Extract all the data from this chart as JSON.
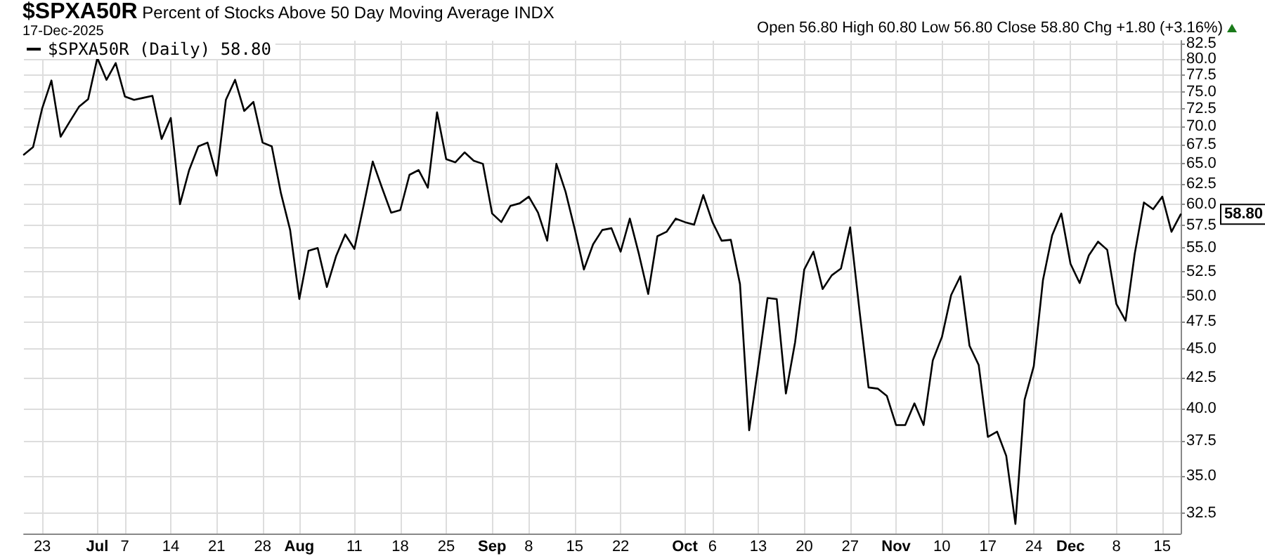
{
  "chart_data": {
    "type": "line",
    "title": "$SPXA50R",
    "subtitle": "Percent of Stocks Above 50 Day Moving Average INDX",
    "annotations": [
      "17-Dec-2025",
      "Open 56.80  High 60.80  Low 56.80  Close 58.80  Chg +1.80 (+3.16%)",
      "58.80"
    ],
    "categories": [
      null,
      null,
      "23",
      null,
      null,
      null,
      null,
      null,
      "Jul",
      null,
      null,
      "7",
      null,
      null,
      null,
      null,
      "14",
      null,
      null,
      null,
      null,
      "21",
      null,
      null,
      null,
      null,
      "28",
      null,
      null,
      null,
      "Aug",
      null,
      null,
      null,
      null,
      null,
      "11",
      null,
      null,
      null,
      null,
      "18",
      null,
      null,
      null,
      null,
      "25",
      null,
      null,
      null,
      null,
      "Sep",
      null,
      null,
      null,
      "8",
      null,
      null,
      null,
      null,
      "15",
      null,
      null,
      null,
      null,
      "22",
      null,
      null,
      null,
      null,
      null,
      null,
      "Oct",
      null,
      null,
      "6",
      null,
      null,
      null,
      null,
      "13",
      null,
      null,
      null,
      null,
      "20",
      null,
      null,
      null,
      null,
      "27",
      null,
      null,
      null,
      null,
      "Nov",
      null,
      null,
      null,
      null,
      "10",
      null,
      null,
      null,
      null,
      "17",
      null,
      null,
      null,
      null,
      "24",
      null,
      null,
      null,
      "Dec",
      null,
      null,
      null,
      null,
      "8",
      null,
      null,
      null,
      null,
      "15",
      null,
      null
    ],
    "series": [
      {
        "name": "$SPXA50R (Daily) 58.80",
        "color": "#000000",
        "values": [
          66.2,
          67.2,
          72.6,
          76.7,
          68.6,
          70.7,
          72.8,
          73.9,
          80.2,
          76.8,
          79.4,
          74.3,
          73.8,
          74.1,
          74.4,
          68.3,
          71.2,
          60.0,
          64.2,
          67.3,
          67.8,
          63.5,
          73.8,
          76.8,
          72.2,
          73.5,
          67.8,
          67.3,
          61.3,
          57.0,
          49.7,
          54.7,
          55.0,
          50.9,
          54.1,
          56.5,
          54.9,
          59.8,
          65.3,
          62.0,
          59.0,
          59.3,
          63.6,
          64.2,
          62.0,
          72.0,
          65.6,
          65.2,
          66.5,
          65.4,
          65.0,
          58.9,
          57.9,
          59.8,
          60.1,
          60.9,
          59.0,
          55.8,
          65.0,
          61.5,
          57.1,
          52.7,
          55.4,
          57.0,
          57.2,
          54.6,
          58.3,
          54.3,
          50.2,
          56.3,
          56.8,
          58.3,
          57.9,
          57.6,
          61.1,
          57.9,
          55.8,
          55.9,
          51.2,
          38.3,
          43.6,
          49.8,
          49.7,
          41.2,
          45.6,
          52.7,
          54.6,
          50.7,
          52.1,
          52.8,
          57.3,
          48.7,
          41.7,
          41.6,
          41.0,
          38.7,
          38.7,
          40.4,
          38.7,
          44.0,
          46.1,
          50.1,
          52.0,
          45.3,
          43.6,
          37.8,
          38.2,
          36.4,
          31.8,
          40.7,
          43.5,
          51.6,
          56.4,
          58.9,
          53.3,
          51.3,
          54.2,
          55.7,
          54.8,
          49.2,
          47.6,
          54.4,
          60.2,
          59.4,
          60.9,
          56.8,
          58.8
        ]
      }
    ],
    "ylim": [
      31.2,
      83.0
    ],
    "log": true,
    "yticks": [
      {
        "value": 32.5,
        "label": "32.5"
      },
      {
        "value": 35,
        "label": "35.0"
      },
      {
        "value": 37.5,
        "label": "37.5"
      },
      {
        "value": 40,
        "label": "40.0"
      },
      {
        "value": 42.5,
        "label": "42.5"
      },
      {
        "value": 45,
        "label": "45.0"
      },
      {
        "value": 47.5,
        "label": "47.5"
      },
      {
        "value": 50,
        "label": "50.0"
      },
      {
        "value": 52.5,
        "label": "52.5"
      },
      {
        "value": 55,
        "label": "55.0"
      },
      {
        "value": 57.5,
        "label": "57.5"
      },
      {
        "value": 60,
        "label": "60.0"
      },
      {
        "value": 62.5,
        "label": "62.5"
      },
      {
        "value": 65,
        "label": "65.0"
      },
      {
        "value": 67.5,
        "label": "67.5"
      },
      {
        "value": 70,
        "label": "70.0"
      },
      {
        "value": 72.5,
        "label": "72.5"
      },
      {
        "value": 75,
        "label": "75.0"
      },
      {
        "value": 77.5,
        "label": "77.5"
      },
      {
        "value": 80,
        "label": "80.0"
      },
      {
        "value": 82.5,
        "label": "82.5"
      }
    ],
    "grid": true,
    "legend": "top left",
    "marker": "none",
    "line_style": "solid"
  }
}
